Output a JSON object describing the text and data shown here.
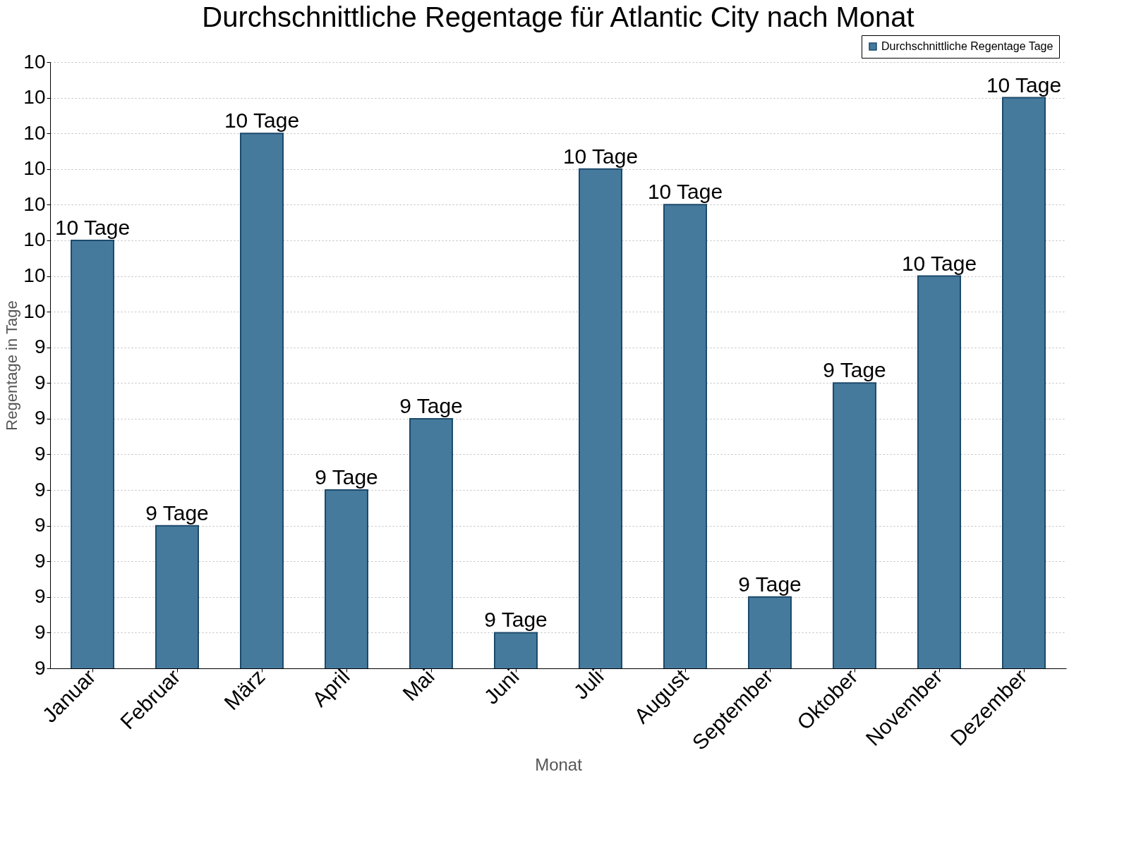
{
  "chart_data": {
    "type": "bar",
    "title": "Durchschnittliche Regentage für Atlantic City nach Monat",
    "xlabel": "Monat",
    "ylabel": "Regentage in Tage",
    "categories": [
      "Januar",
      "Februar",
      "März",
      "April",
      "Mai",
      "Juni",
      "Juli",
      "August",
      "September",
      "Oktober",
      "November",
      "Dezember"
    ],
    "series": [
      {
        "name": "Durchschnittliche Regentage Tage",
        "color": "#467a9c",
        "values": [
          9.6,
          9.2,
          9.75,
          9.25,
          9.35,
          9.05,
          9.7,
          9.65,
          9.1,
          9.4,
          9.55,
          9.8
        ],
        "value_labels": [
          "10 Tage",
          "9 Tage",
          "10 Tage",
          "9 Tage",
          "9 Tage",
          "9 Tage",
          "10 Tage",
          "10 Tage",
          "9 Tage",
          "9 Tage",
          "10 Tage",
          "10 Tage"
        ]
      }
    ],
    "ylim": [
      9.0,
      9.85
    ],
    "yticks": [
      {
        "value": 9.0,
        "label": "9"
      },
      {
        "value": 9.05,
        "label": "9"
      },
      {
        "value": 9.1,
        "label": "9"
      },
      {
        "value": 9.15,
        "label": "9"
      },
      {
        "value": 9.2,
        "label": "9"
      },
      {
        "value": 9.25,
        "label": "9"
      },
      {
        "value": 9.3,
        "label": "9"
      },
      {
        "value": 9.35,
        "label": "9"
      },
      {
        "value": 9.4,
        "label": "9"
      },
      {
        "value": 9.45,
        "label": "9"
      },
      {
        "value": 9.5,
        "label": "10"
      },
      {
        "value": 9.55,
        "label": "10"
      },
      {
        "value": 9.6,
        "label": "10"
      },
      {
        "value": 9.65,
        "label": "10"
      },
      {
        "value": 9.7,
        "label": "10"
      },
      {
        "value": 9.75,
        "label": "10"
      },
      {
        "value": 9.8,
        "label": "10"
      },
      {
        "value": 9.85,
        "label": "10"
      }
    ],
    "grid": "y",
    "legend": "top right"
  }
}
